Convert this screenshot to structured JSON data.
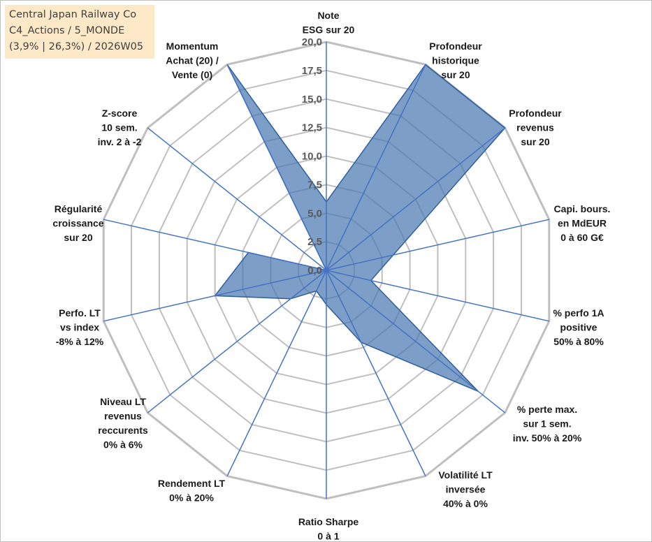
{
  "title": {
    "line1": "Central Japan Railway Co",
    "line2": "C4_Actions / 5_MONDE",
    "line3": "(3,9% | 26,3%) / 2026W05"
  },
  "colors": {
    "fill": "#4a78b2",
    "stroke": "#2f5f9e",
    "spoke": "#4472c4",
    "grid": "#bfbfbf",
    "title_bg": "#fde9c8"
  },
  "chart_data": {
    "type": "radar",
    "rmin": 0,
    "rmax": 20,
    "tick_step": 2.5,
    "tick_labels": [
      "0,0",
      "2,5",
      "5,0",
      "7,5",
      "10,0",
      "12,5",
      "15,0",
      "17,5",
      "20,0"
    ],
    "grid": true,
    "categories": [
      {
        "lines": [
          "Note",
          "ESG sur 20"
        ]
      },
      {
        "lines": [
          "Profondeur",
          "historique",
          "sur 20"
        ]
      },
      {
        "lines": [
          "Profondeur",
          "revenus",
          "sur 20"
        ]
      },
      {
        "lines": [
          "Capi. bours.",
          "en MdEUR",
          "0 à 60 G€"
        ]
      },
      {
        "lines": [
          "% perfo 1A",
          "positive",
          "50% à 80%"
        ]
      },
      {
        "lines": [
          "% perte max.",
          "sur 1 sem.",
          "inv. 50% à 20%"
        ]
      },
      {
        "lines": [
          "Volatilité LT",
          "inversée",
          "40% à 0%"
        ]
      },
      {
        "lines": [
          "Ratio Sharpe",
          "0 à 1"
        ]
      },
      {
        "lines": [
          "Rendement LT",
          "0% à 20%"
        ]
      },
      {
        "lines": [
          "Niveau LT",
          "revenus",
          "reccurents",
          "0% à 6%"
        ]
      },
      {
        "lines": [
          "Perfo. LT",
          "vs index",
          "-8% à 12%"
        ]
      },
      {
        "lines": [
          "Régularité",
          "croissance",
          "sur 20"
        ]
      },
      {
        "lines": [
          "Z-score",
          "10 sem.",
          "inv. 2 à -2"
        ]
      },
      {
        "lines": [
          "Momentum",
          "Achat (20) /",
          "Vente (0)"
        ]
      }
    ],
    "series": [
      {
        "values": [
          6,
          20,
          20,
          6,
          4,
          17,
          7,
          3,
          2,
          4,
          10,
          7,
          0,
          20
        ]
      }
    ]
  }
}
